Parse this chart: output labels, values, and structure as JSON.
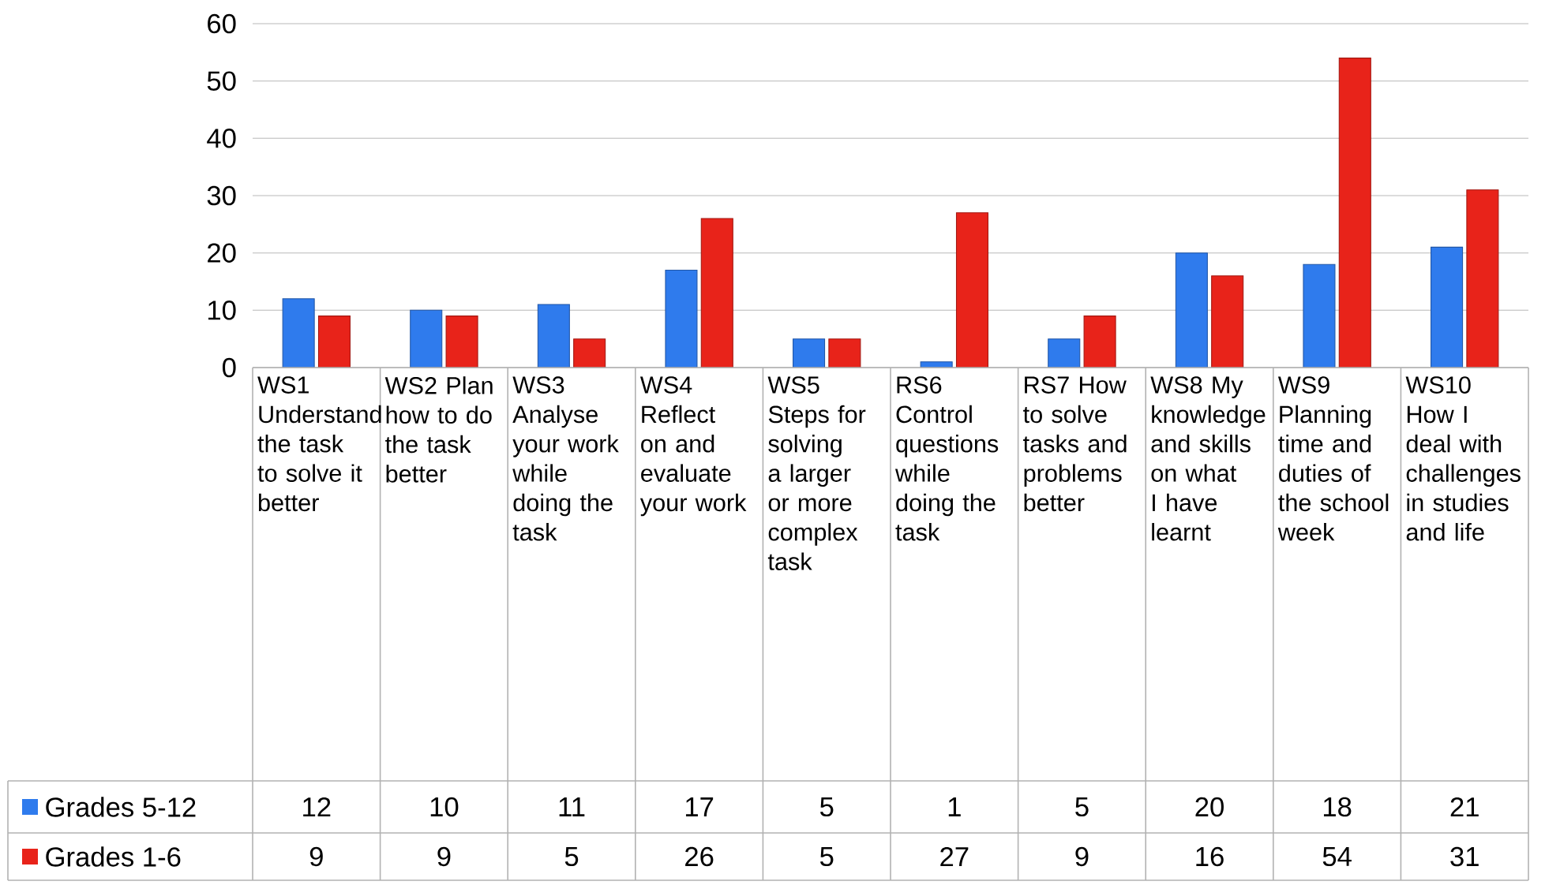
{
  "chart_data": {
    "type": "bar",
    "categories": [
      "WS1 Understand the task to solve it better",
      "WS2 Plan how to do the task better",
      "WS3 Analyse your work while doing the task",
      "WS4 Reflect on and evaluate your work",
      "WS5 Steps for solving a larger or more complex task",
      "RS6 Control questions while doing the task",
      "RS7 How to solve tasks and problems better",
      "WS8 My knowledge and skills on what I have learnt",
      "WS9 Planning time and duties of the school week",
      "WS10 How I deal with challenges in studies and life"
    ],
    "series": [
      {
        "name": "Grades 5-12",
        "color": "#2f7bed",
        "values": [
          12,
          10,
          11,
          17,
          5,
          1,
          5,
          20,
          18,
          21
        ]
      },
      {
        "name": "Grades 1-6",
        "color": "#e8231a",
        "values": [
          9,
          9,
          5,
          26,
          5,
          27,
          9,
          16,
          54,
          31
        ]
      }
    ],
    "ylim": [
      0,
      60
    ],
    "yticks": [
      0,
      10,
      20,
      30,
      40,
      50,
      60
    ],
    "grid": "y",
    "legend": "bottom left",
    "data_labels": true
  }
}
